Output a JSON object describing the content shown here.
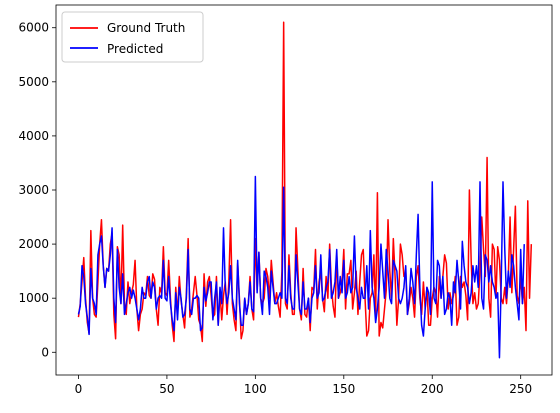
{
  "chart_data": {
    "type": "line",
    "title": "",
    "xlabel": "",
    "ylabel": "",
    "xlim": [
      -12.7,
      267.7
    ],
    "ylim": [
      -420,
      6420
    ],
    "xticks": [
      0,
      50,
      100,
      150,
      200,
      250
    ],
    "yticks": [
      0,
      1000,
      2000,
      3000,
      4000,
      5000,
      6000
    ],
    "legend_position": "top-left",
    "grid": false,
    "series": [
      {
        "name": "Ground Truth",
        "color": "#ff0000",
        "values": [
          650,
          900,
          1300,
          1750,
          1000,
          550,
          350,
          2250,
          1000,
          700,
          650,
          1300,
          2000,
          2450,
          1600,
          1200,
          1550,
          1500,
          2000,
          2200,
          700,
          250,
          1950,
          1800,
          900,
          2350,
          900,
          700,
          1300,
          900,
          1100,
          1250,
          1700,
          800,
          400,
          700,
          800,
          1100,
          1050,
          1400,
          1050,
          1000,
          1450,
          1350,
          800,
          500,
          1200,
          1100,
          1950,
          1100,
          1050,
          1700,
          1000,
          500,
          200,
          1200,
          700,
          1400,
          950,
          700,
          450,
          1100,
          2100,
          650,
          800,
          1100,
          1400,
          1050,
          600,
          500,
          200,
          1450,
          850,
          1300,
          1400,
          1050,
          650,
          700,
          1400,
          500,
          1100,
          600,
          1050,
          1300,
          700,
          1300,
          2450,
          900,
          600,
          400,
          1650,
          1000,
          250,
          400,
          1000,
          700,
          900,
          1400,
          800,
          600,
          2100,
          1150,
          1850,
          1000,
          900,
          1000,
          1550,
          1400,
          1000,
          1700,
          1300,
          900,
          1100,
          850,
          650,
          1500,
          6100,
          900,
          800,
          1800,
          1100,
          700,
          700,
          2300,
          1550,
          800,
          600,
          1550,
          700,
          650,
          1000,
          400,
          1200,
          1150,
          1900,
          800,
          1300,
          1500,
          1000,
          750,
          1400,
          1000,
          2000,
          1200,
          850,
          650,
          1800,
          1000,
          1100,
          1300,
          1900,
          800,
          1450,
          1450,
          1700,
          800,
          1100,
          1500,
          700,
          1300,
          1800,
          1900,
          1000,
          300,
          400,
          1000,
          1100,
          1800,
          700,
          2950,
          300,
          550,
          450,
          800,
          1150,
          2450,
          1500,
          1000,
          2100,
          1400,
          500,
          1000,
          2000,
          1800,
          1400,
          1500,
          700,
          900,
          1200,
          1000,
          650,
          1400,
          1600,
          1000,
          700,
          1300,
          800,
          1200,
          500,
          500,
          1000,
          1200,
          1100,
          650,
          1400,
          1000,
          1400,
          1800,
          1650,
          800,
          1100,
          900,
          1050,
          1400,
          500,
          650,
          1400,
          1200,
          1300,
          1050,
          600,
          3000,
          1700,
          900,
          1100,
          800,
          900,
          1500,
          2500,
          1900,
          1400,
          3600,
          1000,
          650,
          2000,
          1900,
          1000,
          1950,
          1700,
          1000,
          900,
          1200,
          900,
          1400,
          2500,
          1100,
          1900,
          2700,
          1050,
          900,
          1400,
          900,
          1200,
          400,
          2800,
          1000,
          2000
        ]
      },
      {
        "name": "Predicted",
        "color": "#0000ff",
        "values": [
          700,
          850,
          1600,
          1400,
          900,
          650,
          330,
          1550,
          1000,
          900,
          700,
          1800,
          2000,
          2150,
          1600,
          1200,
          1550,
          1500,
          1800,
          2300,
          1000,
          550,
          1900,
          1200,
          900,
          1450,
          700,
          900,
          1100,
          1200,
          1000,
          1150,
          1000,
          800,
          600,
          800,
          1200,
          1000,
          1000,
          1300,
          1400,
          1000,
          1300,
          1200,
          800,
          1000,
          1050,
          1000,
          1700,
          1000,
          950,
          1400,
          900,
          600,
          400,
          1100,
          600,
          1200,
          1000,
          650,
          700,
          1000,
          1900,
          800,
          700,
          1000,
          1000,
          1050,
          1000,
          400,
          450,
          1200,
          950,
          1100,
          1300,
          1300,
          600,
          1000,
          1300,
          500,
          1200,
          900,
          2300,
          1200,
          900,
          1100,
          1600,
          1000,
          800,
          600,
          1700,
          900,
          500,
          500,
          1000,
          700,
          900,
          1300,
          800,
          750,
          3250,
          1100,
          1850,
          1000,
          700,
          1500,
          1400,
          1200,
          700,
          1500,
          1200,
          900,
          900,
          1000,
          1100,
          1000,
          3050,
          1000,
          900,
          1600,
          1000,
          800,
          800,
          1800,
          1300,
          800,
          700,
          1300,
          800,
          800,
          1000,
          550,
          1000,
          1100,
          1600,
          1000,
          1100,
          1800,
          950,
          1000,
          1200,
          1300,
          1900,
          1000,
          1100,
          1300,
          1900,
          1000,
          1400,
          1100,
          1700,
          1000,
          1100,
          1400,
          1100,
          1200,
          2150,
          1200,
          1000,
          800,
          1200,
          1000,
          1000,
          1600,
          800,
          2250,
          1200,
          1000,
          550,
          800,
          1200,
          2000,
          1500,
          1000,
          1900,
          1500,
          1000,
          900,
          1700,
          1600,
          1500,
          1000,
          900,
          1000,
          1200,
          1600,
          700,
          1000,
          1550,
          1300,
          900,
          1800,
          2550,
          1200,
          500,
          300,
          800,
          1200,
          1100,
          700,
          3150,
          1000,
          900,
          1700,
          1600,
          1000,
          1400,
          700,
          800,
          1100,
          1000,
          500,
          1300,
          1100,
          1700,
          1300,
          800,
          2050,
          1600,
          1300,
          1200,
          900,
          1100,
          1600,
          1300,
          1600,
          1200,
          3150,
          1000,
          800,
          1800,
          1700,
          1300,
          1600,
          1300,
          1200,
          1000,
          1100,
          -100,
          1300,
          3150,
          1900,
          1000,
          1500,
          1200,
          1800,
          1600,
          1200,
          900,
          600,
          1900,
          900,
          2000
        ]
      }
    ]
  }
}
